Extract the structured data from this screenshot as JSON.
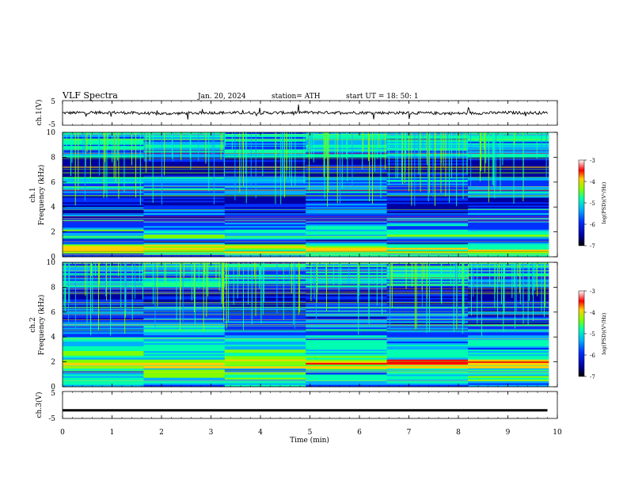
{
  "header": {
    "title": "VLF  Spectra",
    "date": "Jan. 20, 2024",
    "station": "station= ATH",
    "start": "start  UT  =   18: 50: 1"
  },
  "colors": {
    "spectrogram": [
      "#0000a0",
      "#0030ff",
      "#00b0ff",
      "#00ffb0",
      "#80ff00",
      "#ffd000",
      "#ff0000"
    ],
    "trace": "#000000",
    "background": "#ffffff"
  },
  "chart_data": [
    {
      "type": "line",
      "panel": "ch1",
      "ylabel": "ch.1(V)",
      "ylim": [
        -5,
        5
      ],
      "ticks": [
        "5",
        "-5"
      ],
      "x": [
        0,
        1,
        2,
        3,
        4,
        5,
        6,
        7,
        8,
        9,
        9.8
      ],
      "values": [
        0,
        0.2,
        -0.3,
        0.1,
        0,
        0.2,
        0.1,
        0,
        -0.2,
        0.1,
        0
      ]
    },
    {
      "type": "heatmap",
      "panel": "ch1-spectrogram",
      "ylabel_line1": "ch.1",
      "ylabel_line2": "Frequency  (kHz)",
      "ylim": [
        0,
        10
      ],
      "yticks": [
        "0",
        "2",
        "4",
        "6",
        "8",
        "10"
      ],
      "colorbar_label": "log(PSD)(V²/Hz)",
      "colorbar_ticks": [
        "-3",
        "-4",
        "-5",
        "-6",
        "-7"
      ],
      "color_range": [
        -7,
        -3
      ],
      "freq_bands_khz": [
        0,
        0.3,
        1,
        1.5,
        2.2,
        3,
        4,
        5,
        6.4,
        8,
        10
      ],
      "band_levels": [
        -5.5,
        -4.2,
        -6,
        -5.3,
        -5.8,
        -6.2,
        -6.4,
        -5.7,
        -6.8,
        -5.4
      ]
    },
    {
      "type": "heatmap",
      "panel": "ch2-spectrogram",
      "ylabel_line1": "ch.2",
      "ylabel_line2": "Frequency  (kHz)",
      "ylim": [
        0,
        10
      ],
      "yticks": [
        "0",
        "2",
        "4",
        "6",
        "8",
        "10"
      ],
      "colorbar_label": "log(PSD)(V²/Hz)",
      "colorbar_ticks": [
        "-3",
        "-4",
        "-5",
        "-6",
        "-7"
      ],
      "color_range": [
        -7,
        -3
      ],
      "freq_bands_khz": [
        0,
        0.3,
        1,
        1.5,
        2.2,
        3,
        4,
        5,
        6.4,
        8,
        10
      ],
      "band_levels": [
        -5.6,
        -5.2,
        -5.3,
        -4.0,
        -5.0,
        -5.4,
        -5.8,
        -6.1,
        -6.6,
        -5.6
      ]
    },
    {
      "type": "line",
      "panel": "ch3",
      "ylabel": "ch.3(V)",
      "ylim": [
        -5,
        5
      ],
      "ticks": [
        "5",
        "-5"
      ],
      "x": [
        0,
        9.8
      ],
      "values": [
        -2,
        -2
      ]
    }
  ],
  "xaxis": {
    "label": "Time  (min)",
    "range": [
      0,
      10
    ],
    "ticks": [
      "0",
      "1",
      "2",
      "3",
      "4",
      "5",
      "6",
      "7",
      "8",
      "9",
      "10"
    ]
  }
}
